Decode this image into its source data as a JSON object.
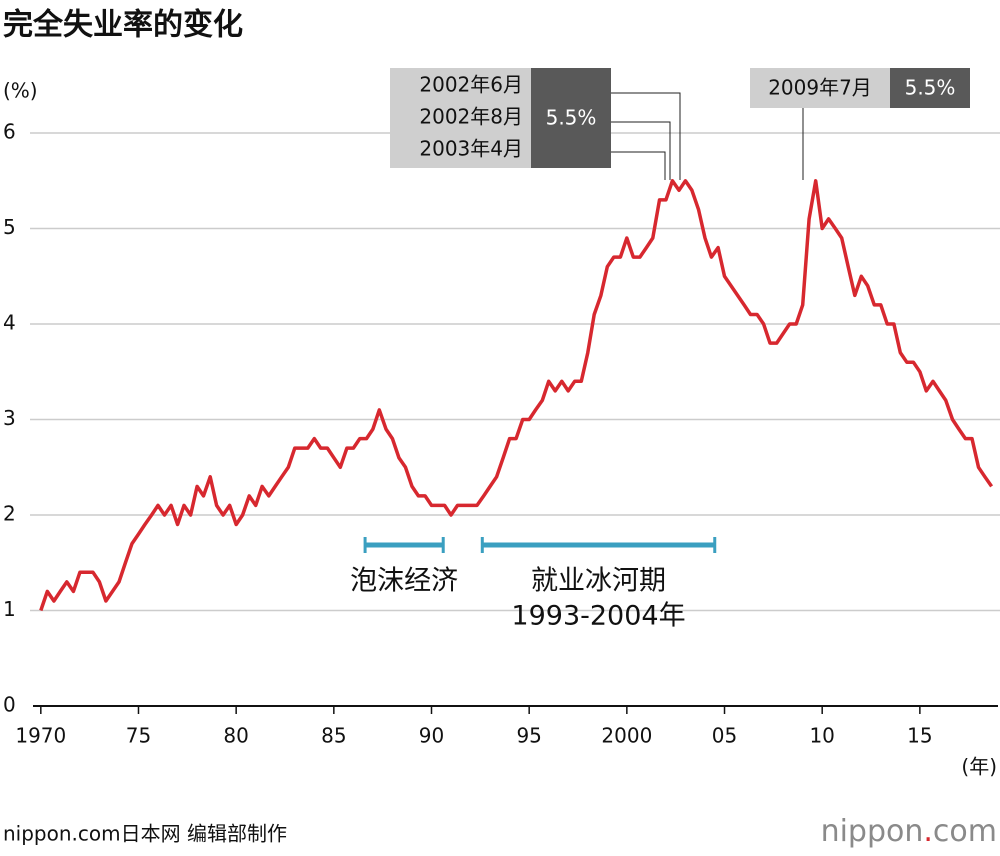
{
  "chart_data": {
    "type": "line",
    "title": "完全失业率的变化",
    "y_unit": "(%)",
    "x_unit": "(年)",
    "color": "#d7282f",
    "x": [
      1970,
      1970.33,
      1970.67,
      1971,
      1971.33,
      1971.67,
      1972,
      1972.33,
      1972.67,
      1973,
      1973.33,
      1973.67,
      1974,
      1974.33,
      1974.67,
      1975,
      1975.33,
      1975.67,
      1976,
      1976.33,
      1976.67,
      1977,
      1977.33,
      1977.67,
      1978,
      1978.33,
      1978.67,
      1979,
      1979.33,
      1979.67,
      1980,
      1980.33,
      1980.67,
      1981,
      1981.33,
      1981.67,
      1982,
      1982.33,
      1982.67,
      1983,
      1983.33,
      1983.67,
      1984,
      1984.33,
      1984.67,
      1985,
      1985.33,
      1985.67,
      1986,
      1986.33,
      1986.67,
      1987,
      1987.33,
      1987.67,
      1988,
      1988.33,
      1988.67,
      1989,
      1989.33,
      1989.67,
      1990,
      1990.33,
      1990.67,
      1991,
      1991.33,
      1991.67,
      1992,
      1992.33,
      1992.67,
      1993,
      1993.33,
      1993.67,
      1994,
      1994.33,
      1994.67,
      1995,
      1995.33,
      1995.67,
      1996,
      1996.33,
      1996.67,
      1997,
      1997.33,
      1997.67,
      1998,
      1998.33,
      1998.67,
      1999,
      1999.33,
      1999.67,
      2000,
      2000.33,
      2000.67,
      2001,
      2001.33,
      2001.67,
      2002,
      2002.33,
      2002.67,
      2003,
      2003.33,
      2003.67,
      2004,
      2004.33,
      2004.67,
      2005,
      2005.33,
      2005.67,
      2006,
      2006.33,
      2006.67,
      2007,
      2007.33,
      2007.67,
      2008,
      2008.33,
      2008.67,
      2009,
      2009.33,
      2009.67,
      2010,
      2010.33,
      2010.67,
      2011,
      2011.33,
      2011.67,
      2012,
      2012.33,
      2012.67,
      2013,
      2013.33,
      2013.67,
      2014,
      2014.33,
      2014.67,
      2015,
      2015.33,
      2015.67,
      2016,
      2016.33,
      2016.67,
      2017,
      2017.33,
      2017.67,
      2018,
      2018.33,
      2018.67
    ],
    "values": [
      1.0,
      1.2,
      1.1,
      1.2,
      1.3,
      1.2,
      1.4,
      1.4,
      1.4,
      1.3,
      1.1,
      1.2,
      1.3,
      1.5,
      1.7,
      1.8,
      1.9,
      2.0,
      2.1,
      2.0,
      2.1,
      1.9,
      2.1,
      2.0,
      2.3,
      2.2,
      2.4,
      2.1,
      2.0,
      2.1,
      1.9,
      2.0,
      2.2,
      2.1,
      2.3,
      2.2,
      2.3,
      2.4,
      2.5,
      2.7,
      2.7,
      2.7,
      2.8,
      2.7,
      2.7,
      2.6,
      2.5,
      2.7,
      2.7,
      2.8,
      2.8,
      2.9,
      3.1,
      2.9,
      2.8,
      2.6,
      2.5,
      2.3,
      2.2,
      2.2,
      2.1,
      2.1,
      2.1,
      2.0,
      2.1,
      2.1,
      2.1,
      2.1,
      2.2,
      2.3,
      2.4,
      2.6,
      2.8,
      2.8,
      3.0,
      3.0,
      3.1,
      3.2,
      3.4,
      3.3,
      3.4,
      3.3,
      3.4,
      3.4,
      3.7,
      4.1,
      4.3,
      4.6,
      4.7,
      4.7,
      4.9,
      4.7,
      4.7,
      4.8,
      4.9,
      5.3,
      5.3,
      5.5,
      5.4,
      5.5,
      5.4,
      5.2,
      4.9,
      4.7,
      4.8,
      4.5,
      4.4,
      4.3,
      4.2,
      4.1,
      4.1,
      4.0,
      3.8,
      3.8,
      3.9,
      4.0,
      4.0,
      4.2,
      5.1,
      5.5,
      5.0,
      5.1,
      5.0,
      4.9,
      4.6,
      4.3,
      4.5,
      4.4,
      4.2,
      4.2,
      4.0,
      4.0,
      3.7,
      3.6,
      3.6,
      3.5,
      3.3,
      3.4,
      3.3,
      3.2,
      3.0,
      2.9,
      2.8,
      2.8,
      2.5,
      2.4,
      2.3
    ],
    "xlim": [
      1969.6,
      2019.0
    ],
    "ylim": [
      0,
      6
    ],
    "xticks": [
      {
        "value": 1970,
        "label": "1970"
      },
      {
        "value": 1975,
        "label": "75"
      },
      {
        "value": 1980,
        "label": "80"
      },
      {
        "value": 1985,
        "label": "85"
      },
      {
        "value": 1990,
        "label": "90"
      },
      {
        "value": 1995,
        "label": "95"
      },
      {
        "value": 2000,
        "label": "2000"
      },
      {
        "value": 2005,
        "label": "05"
      },
      {
        "value": 2010,
        "label": "10"
      },
      {
        "value": 2015,
        "label": "15"
      }
    ],
    "yticks": [
      0,
      1,
      2,
      3,
      4,
      5,
      6
    ],
    "grid": true,
    "periods": [
      {
        "label_lines": [
          "泡沫经济"
        ],
        "start": 1986.6,
        "end": 1990.6,
        "color": "#3a9fc0"
      },
      {
        "label_lines": [
          "就业冰河期",
          "1993-2004年"
        ],
        "start": 1992.6,
        "end": 2004.5,
        "color": "#3a9fc0"
      }
    ],
    "annotations": [
      {
        "dates": [
          "2002年6月",
          "2002年8月",
          "2003年4月"
        ],
        "value": "5.5%"
      },
      {
        "dates": [
          "2009年7月"
        ],
        "value": "5.5%"
      }
    ]
  },
  "footer": {
    "credit": "nippon.com日本网 编辑部制作",
    "logo": [
      "nippon",
      ".",
      "com"
    ]
  }
}
